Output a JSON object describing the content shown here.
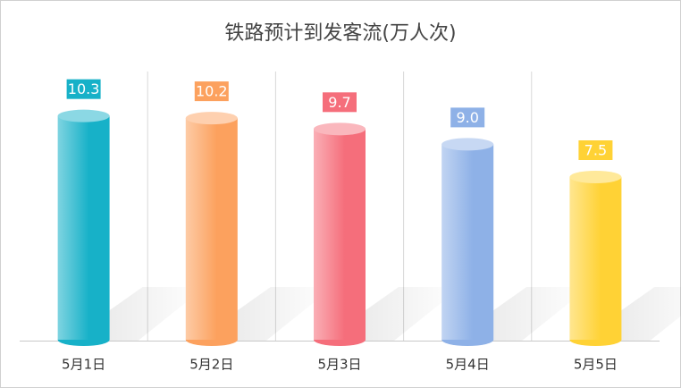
{
  "chart_data": {
    "type": "cylinder-bar",
    "title": "铁路预计到发客流(万人次)",
    "categories": [
      "5月1日",
      "5月2日",
      "5月3日",
      "5月4日",
      "5月5日"
    ],
    "values": [
      10.3,
      10.2,
      9.7,
      9.0,
      7.5
    ],
    "value_labels": [
      "10.3",
      "10.2",
      "9.7",
      "9.0",
      "7.5"
    ],
    "colors": [
      "#17b1c8",
      "#fca15e",
      "#f56e7b",
      "#8eb1e7",
      "#ffd235"
    ]
  }
}
